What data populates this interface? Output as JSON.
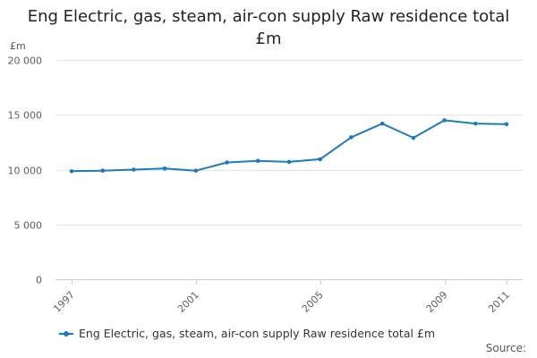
{
  "title_line1": "Eng Electric, gas, steam, air-con supply Raw residence total",
  "title_line2": "£m",
  "unit_label": "£m",
  "source_label": "Source:",
  "accent_color": "#1f7ab8",
  "chart_data": {
    "type": "line",
    "title": "Eng Electric, gas, steam, air-con supply Raw residence total £m",
    "ylabel": "£m",
    "xlabel": "",
    "ylim": [
      0,
      20000
    ],
    "yticks": [
      0,
      5000,
      10000,
      15000,
      20000
    ],
    "ytick_labels": [
      "0",
      "5 000",
      "10 000",
      "15 000",
      "20 000"
    ],
    "x": [
      1997,
      1998,
      1999,
      2000,
      2001,
      2002,
      2003,
      2004,
      2005,
      2006,
      2007,
      2008,
      2009,
      2010,
      2011
    ],
    "xtick_labels": [
      "1997",
      "2001",
      "2005",
      "2009",
      "2011"
    ],
    "grid": true,
    "legend_position": "bottom-left",
    "series": [
      {
        "name": "Eng Electric, gas, steam, air-con supply Raw residence total £m",
        "color": "#1f7ab8",
        "values": [
          9850,
          9900,
          10000,
          10100,
          9900,
          10650,
          10800,
          10700,
          10950,
          12950,
          14200,
          12900,
          14500,
          14200,
          14150
        ]
      }
    ]
  }
}
